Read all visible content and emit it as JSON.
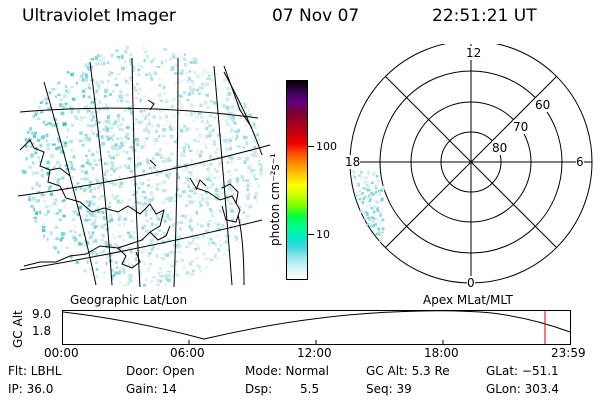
{
  "header": {
    "title": "Ultraviolet Imager",
    "date": "07 Nov 07",
    "time": "22:51:21 UT"
  },
  "colorbar": {
    "unit": "photon cm⁻²s⁻¹",
    "ticks": [
      "100",
      "10"
    ],
    "colors": [
      "#000000",
      "#3a0050",
      "#600080",
      "#7a003a",
      "#a00020",
      "#c80010",
      "#ee0000",
      "#ff5000",
      "#ff9000",
      "#ffc800",
      "#ffff00",
      "#c8ff00",
      "#78ff00",
      "#00ff40",
      "#00ff90",
      "#00e8c8",
      "#40d8e0",
      "#9ce8ec",
      "#d8f4f4",
      "#ffffff"
    ]
  },
  "polar": {
    "mlt_labels": {
      "top": "12",
      "left": "18",
      "right": "6",
      "bottom": "0"
    },
    "lat_labels": [
      "60",
      "70",
      "80"
    ]
  },
  "map": {
    "caption": "Geographic Lat/Lon"
  },
  "polar_caption": "Apex MLat/MLT",
  "timeline": {
    "ylabel": "GC Alt",
    "y_ticks": [
      "9.0",
      "1.8"
    ],
    "x_ticks": [
      "00:00",
      "06:00",
      "12:00",
      "18:00",
      "23:59"
    ]
  },
  "info": {
    "filter": "Flt: LBHL",
    "ip": "IP: 36.0",
    "door": "Door: Open",
    "gain": "Gain: 14",
    "mode": "Mode: Normal",
    "dsp_label": "Dsp:",
    "dsp_value": "5.5",
    "gc_alt": "GC Alt: 5.3 Re",
    "seq": "Seq: 39",
    "glat": "GLat: −51.1",
    "glon": "GLon: 303.4"
  }
}
